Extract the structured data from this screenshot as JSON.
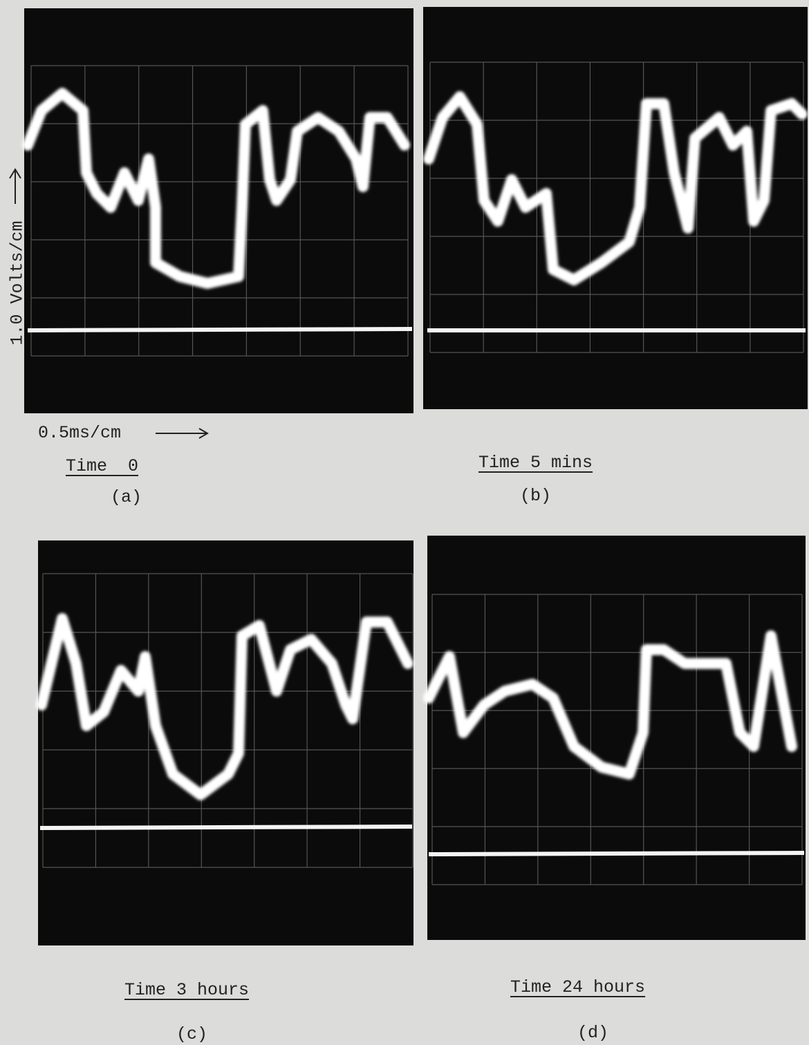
{
  "axis_labels": {
    "y": "1.0 Volts/cm",
    "x": "0.5ms/cm"
  },
  "panels": [
    {
      "caption": "Time  0",
      "label": "(a)"
    },
    {
      "caption": "Time 5 mins",
      "label": "(b)"
    },
    {
      "caption": "Time 3 hours",
      "label": "(c)"
    },
    {
      "caption": "Time 24 hours",
      "label": "(d)"
    }
  ]
}
